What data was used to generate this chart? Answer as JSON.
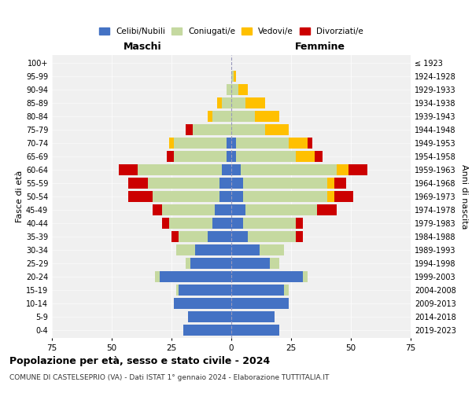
{
  "age_groups": [
    "0-4",
    "5-9",
    "10-14",
    "15-19",
    "20-24",
    "25-29",
    "30-34",
    "35-39",
    "40-44",
    "45-49",
    "50-54",
    "55-59",
    "60-64",
    "65-69",
    "70-74",
    "75-79",
    "80-84",
    "85-89",
    "90-94",
    "95-99",
    "100+"
  ],
  "birth_years": [
    "2019-2023",
    "2014-2018",
    "2009-2013",
    "2004-2008",
    "1999-2003",
    "1994-1998",
    "1989-1993",
    "1984-1988",
    "1979-1983",
    "1974-1978",
    "1969-1973",
    "1964-1968",
    "1959-1963",
    "1954-1958",
    "1949-1953",
    "1944-1948",
    "1939-1943",
    "1934-1938",
    "1929-1933",
    "1924-1928",
    "≤ 1923"
  ],
  "male": {
    "celibi": [
      20,
      18,
      24,
      22,
      30,
      17,
      15,
      10,
      8,
      7,
      5,
      5,
      4,
      2,
      2,
      0,
      0,
      0,
      0,
      0,
      0
    ],
    "coniugati": [
      0,
      0,
      0,
      1,
      2,
      2,
      8,
      12,
      18,
      22,
      28,
      30,
      35,
      22,
      22,
      16,
      8,
      4,
      2,
      0,
      0
    ],
    "vedovi": [
      0,
      0,
      0,
      0,
      0,
      0,
      0,
      0,
      0,
      0,
      0,
      0,
      0,
      0,
      2,
      0,
      2,
      2,
      0,
      0,
      0
    ],
    "divorziati": [
      0,
      0,
      0,
      0,
      0,
      0,
      0,
      3,
      3,
      4,
      10,
      8,
      8,
      3,
      0,
      3,
      0,
      0,
      0,
      0,
      0
    ]
  },
  "female": {
    "nubili": [
      20,
      18,
      24,
      22,
      30,
      16,
      12,
      7,
      5,
      6,
      5,
      5,
      4,
      2,
      2,
      0,
      0,
      0,
      0,
      0,
      0
    ],
    "coniugate": [
      0,
      0,
      0,
      2,
      2,
      4,
      10,
      20,
      22,
      30,
      35,
      35,
      40,
      25,
      22,
      14,
      10,
      6,
      3,
      1,
      0
    ],
    "vedove": [
      0,
      0,
      0,
      0,
      0,
      0,
      0,
      0,
      0,
      0,
      3,
      3,
      5,
      8,
      8,
      10,
      10,
      8,
      4,
      1,
      0
    ],
    "divorziate": [
      0,
      0,
      0,
      0,
      0,
      0,
      0,
      3,
      3,
      8,
      8,
      5,
      8,
      3,
      2,
      0,
      0,
      0,
      0,
      0,
      0
    ]
  },
  "colors": {
    "celibi": "#4472c4",
    "coniugati": "#c5d9a0",
    "vedovi": "#ffc000",
    "divorziati": "#cc0000"
  },
  "xlim": 75,
  "title": "Popolazione per età, sesso e stato civile - 2024",
  "subtitle": "COMUNE DI CASTELSEPRIO (VA) - Dati ISTAT 1° gennaio 2024 - Elaborazione TUTTITALIA.IT",
  "legend_labels": [
    "Celibi/Nubili",
    "Coniugati/e",
    "Vedovi/e",
    "Divorziati/e"
  ],
  "maschi_label": "Maschi",
  "femmine_label": "Femmine",
  "fasce_label": "Fasce di età",
  "anni_label": "Anni di nascita",
  "bg_color": "#f0f0f0"
}
